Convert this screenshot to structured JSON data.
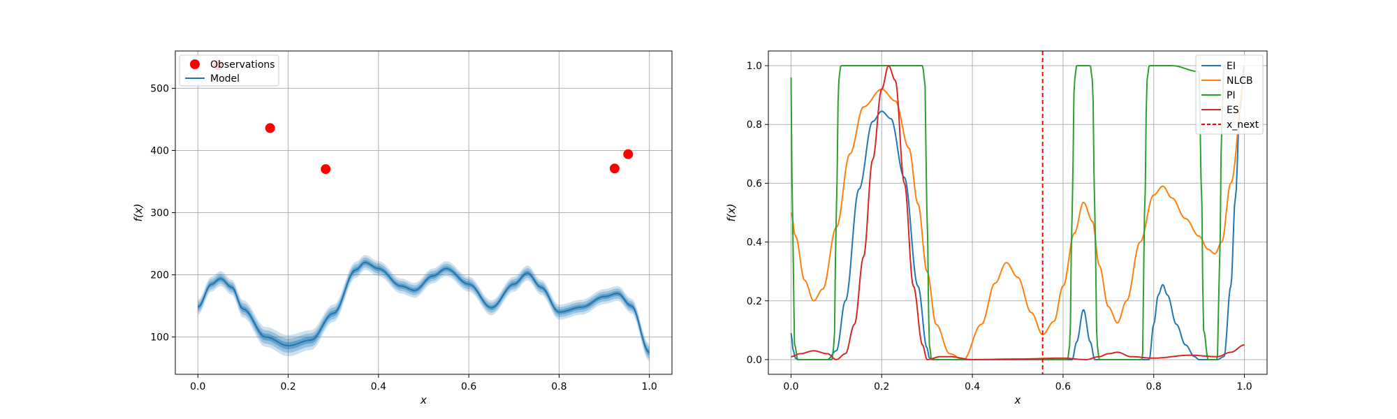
{
  "chart_data": [
    {
      "type": "line",
      "xlabel": "x",
      "ylabel": "f(x)",
      "xlim": [
        -0.05,
        1.05
      ],
      "ylim": [
        40,
        560
      ],
      "xticks": [
        "0.0",
        "0.2",
        "0.4",
        "0.6",
        "0.8",
        "1.0"
      ],
      "yticks": [
        "100",
        "200",
        "300",
        "400",
        "500"
      ],
      "grid": true,
      "legend": {
        "placement": "upper-left",
        "entries": [
          "Observations",
          "Model"
        ]
      },
      "observations": {
        "name": "Observations",
        "color": "#ff0000",
        "x": [
          0.045,
          0.16,
          0.283,
          0.923,
          0.953
        ],
        "y": [
          537,
          436,
          370,
          371,
          394
        ]
      },
      "model": {
        "name": "Model",
        "color": "#1f77b4",
        "x": [
          0.0,
          0.03,
          0.05,
          0.075,
          0.1,
          0.15,
          0.2,
          0.25,
          0.3,
          0.35,
          0.37,
          0.4,
          0.45,
          0.48,
          0.52,
          0.55,
          0.6,
          0.65,
          0.7,
          0.73,
          0.76,
          0.8,
          0.85,
          0.9,
          0.93,
          0.96,
          1.0
        ],
        "y": [
          148,
          185,
          194,
          180,
          145,
          100,
          86,
          95,
          138,
          208,
          220,
          210,
          182,
          175,
          198,
          210,
          185,
          147,
          185,
          203,
          180,
          140,
          148,
          165,
          170,
          150,
          75
        ],
        "band_width": [
          12,
          12,
          12,
          12,
          14,
          16,
          17,
          16,
          14,
          13,
          12,
          12,
          12,
          12,
          12,
          12,
          12,
          12,
          12,
          12,
          12,
          12,
          12,
          12,
          12,
          12,
          14
        ]
      }
    },
    {
      "type": "line",
      "xlabel": "x",
      "ylabel": "f(x)",
      "xlim": [
        -0.05,
        1.05
      ],
      "ylim": [
        -0.05,
        1.05
      ],
      "xticks": [
        "0.0",
        "0.2",
        "0.4",
        "0.6",
        "0.8",
        "1.0"
      ],
      "yticks": [
        "0.0",
        "0.2",
        "0.4",
        "0.6",
        "0.8",
        "1.0"
      ],
      "grid": true,
      "legend": {
        "placement": "upper-right",
        "entries": [
          "EI",
          "NLCB",
          "PI",
          "ES",
          "x_next"
        ]
      },
      "x_next": {
        "name": "x_next",
        "color": "#ff0000",
        "value": 0.555
      },
      "series": [
        {
          "name": "EI",
          "color": "#1f77b4",
          "x": [
            0.0,
            0.005,
            0.01,
            0.015,
            0.02,
            0.05,
            0.08,
            0.1,
            0.12,
            0.15,
            0.18,
            0.2,
            0.22,
            0.25,
            0.28,
            0.3,
            0.305,
            0.32,
            0.6,
            0.62,
            0.63,
            0.645,
            0.66,
            0.67,
            0.68,
            0.79,
            0.8,
            0.81,
            0.82,
            0.83,
            0.85,
            0.87,
            0.89,
            0.9,
            0.94,
            0.955,
            0.97,
            0.98,
            0.99,
            1.0
          ],
          "y": [
            0.09,
            0.03,
            0.005,
            0.0,
            0.0,
            0.0,
            0.0,
            0.03,
            0.2,
            0.58,
            0.81,
            0.845,
            0.82,
            0.62,
            0.25,
            0.04,
            0.005,
            0.0,
            0.0,
            0.0,
            0.06,
            0.17,
            0.06,
            0.0,
            0.0,
            0.0,
            0.12,
            0.22,
            0.255,
            0.22,
            0.12,
            0.05,
            0.01,
            0.0,
            0.0,
            0.01,
            0.25,
            0.55,
            0.85,
            1.0
          ]
        },
        {
          "name": "NLCB",
          "color": "#ff7f0e",
          "x": [
            0.0,
            0.01,
            0.03,
            0.05,
            0.07,
            0.1,
            0.13,
            0.16,
            0.2,
            0.23,
            0.26,
            0.28,
            0.3,
            0.32,
            0.35,
            0.38,
            0.42,
            0.45,
            0.475,
            0.5,
            0.53,
            0.555,
            0.58,
            0.6,
            0.625,
            0.645,
            0.665,
            0.68,
            0.7,
            0.72,
            0.74,
            0.77,
            0.8,
            0.82,
            0.84,
            0.87,
            0.9,
            0.92,
            0.935,
            0.95,
            0.97,
            1.0
          ],
          "y": [
            0.5,
            0.42,
            0.27,
            0.2,
            0.24,
            0.45,
            0.7,
            0.86,
            0.92,
            0.88,
            0.72,
            0.53,
            0.3,
            0.12,
            0.02,
            0.0,
            0.12,
            0.26,
            0.33,
            0.28,
            0.16,
            0.085,
            0.13,
            0.25,
            0.43,
            0.535,
            0.47,
            0.32,
            0.18,
            0.125,
            0.2,
            0.4,
            0.56,
            0.59,
            0.55,
            0.48,
            0.42,
            0.375,
            0.36,
            0.4,
            0.6,
            0.95
          ]
        },
        {
          "name": "PI",
          "color": "#2ca02c",
          "x": [
            0.0,
            0.003,
            0.008,
            0.015,
            0.09,
            0.095,
            0.1,
            0.105,
            0.11,
            0.2,
            0.29,
            0.295,
            0.3,
            0.305,
            0.31,
            0.61,
            0.615,
            0.62,
            0.625,
            0.63,
            0.66,
            0.665,
            0.67,
            0.675,
            0.68,
            0.775,
            0.78,
            0.785,
            0.79,
            0.8,
            0.84,
            0.9,
            0.905,
            0.91,
            0.92,
            0.94,
            0.945,
            0.95,
            0.955,
            0.96
          ],
          "y": [
            0.96,
            0.5,
            0.05,
            0.0,
            0.0,
            0.05,
            0.5,
            0.95,
            1.0,
            1.0,
            1.0,
            0.95,
            0.5,
            0.05,
            0.0,
            0.0,
            0.05,
            0.5,
            0.95,
            1.0,
            1.0,
            0.95,
            0.5,
            0.05,
            0.0,
            0.0,
            0.5,
            0.95,
            1.0,
            1.0,
            1.0,
            0.98,
            0.6,
            0.1,
            0.0,
            0.0,
            0.3,
            0.8,
            1.0,
            1.0
          ]
        },
        {
          "name": "ES",
          "color": "#d62728",
          "x": [
            0.0,
            0.02,
            0.05,
            0.08,
            0.1,
            0.12,
            0.14,
            0.16,
            0.18,
            0.2,
            0.215,
            0.23,
            0.25,
            0.27,
            0.29,
            0.3,
            0.33,
            0.35,
            0.4,
            0.5,
            0.6,
            0.65,
            0.68,
            0.7,
            0.72,
            0.75,
            0.8,
            0.88,
            0.94,
            0.97,
            1.0
          ],
          "y": [
            0.01,
            0.02,
            0.03,
            0.02,
            0.0,
            0.02,
            0.12,
            0.35,
            0.68,
            0.92,
            1.0,
            0.95,
            0.6,
            0.25,
            0.05,
            0.0,
            0.01,
            0.01,
            0.0,
            0.002,
            0.005,
            0.0,
            0.01,
            0.02,
            0.025,
            0.01,
            0.005,
            0.015,
            0.01,
            0.025,
            0.05
          ]
        }
      ]
    }
  ]
}
